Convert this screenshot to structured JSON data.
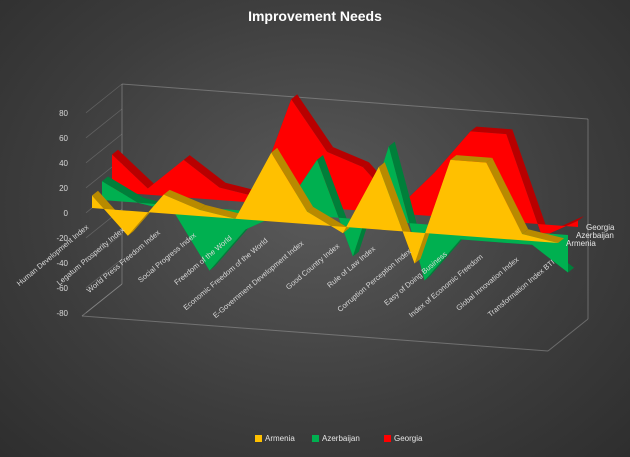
{
  "chart_data": {
    "type": "area",
    "variant": "3d-area",
    "title": "Improvement Needs",
    "categories": [
      "Human Development Index",
      "Legatum Prosperity Index",
      "World Press Freedom Index",
      "Social Progress Index",
      "Freedom of the World",
      "Economic Freedom of the World",
      "E-Government Development Index",
      "Good Country Index",
      "Rule of Law Index",
      "Corruption Perception Index",
      "Easy of Doing Business",
      "Index of Economic Freedom",
      "Global Innovation Index",
      "Transformation Index BTI"
    ],
    "series": [
      {
        "name": "Armenia",
        "color": "#FFC000",
        "values": [
          10,
          -20,
          15,
          5,
          0,
          55,
          10,
          -5,
          50,
          -25,
          60,
          60,
          5,
          0
        ]
      },
      {
        "name": "Azerbaijan",
        "color": "#00B050",
        "values": [
          15,
          0,
          -5,
          -50,
          -15,
          0,
          45,
          -30,
          60,
          -45,
          -10,
          -10,
          -10,
          -30
        ]
      },
      {
        "name": "Georgia",
        "color": "#FF0000",
        "values": [
          30,
          5,
          30,
          10,
          5,
          85,
          45,
          35,
          5,
          35,
          70,
          70,
          -10,
          5
        ]
      }
    ],
    "ylim": [
      -80,
      80
    ],
    "yticks": [
      80,
      60,
      40,
      20,
      0,
      -20,
      -40,
      -60,
      -80
    ],
    "legend": "bottom",
    "grid": false
  }
}
